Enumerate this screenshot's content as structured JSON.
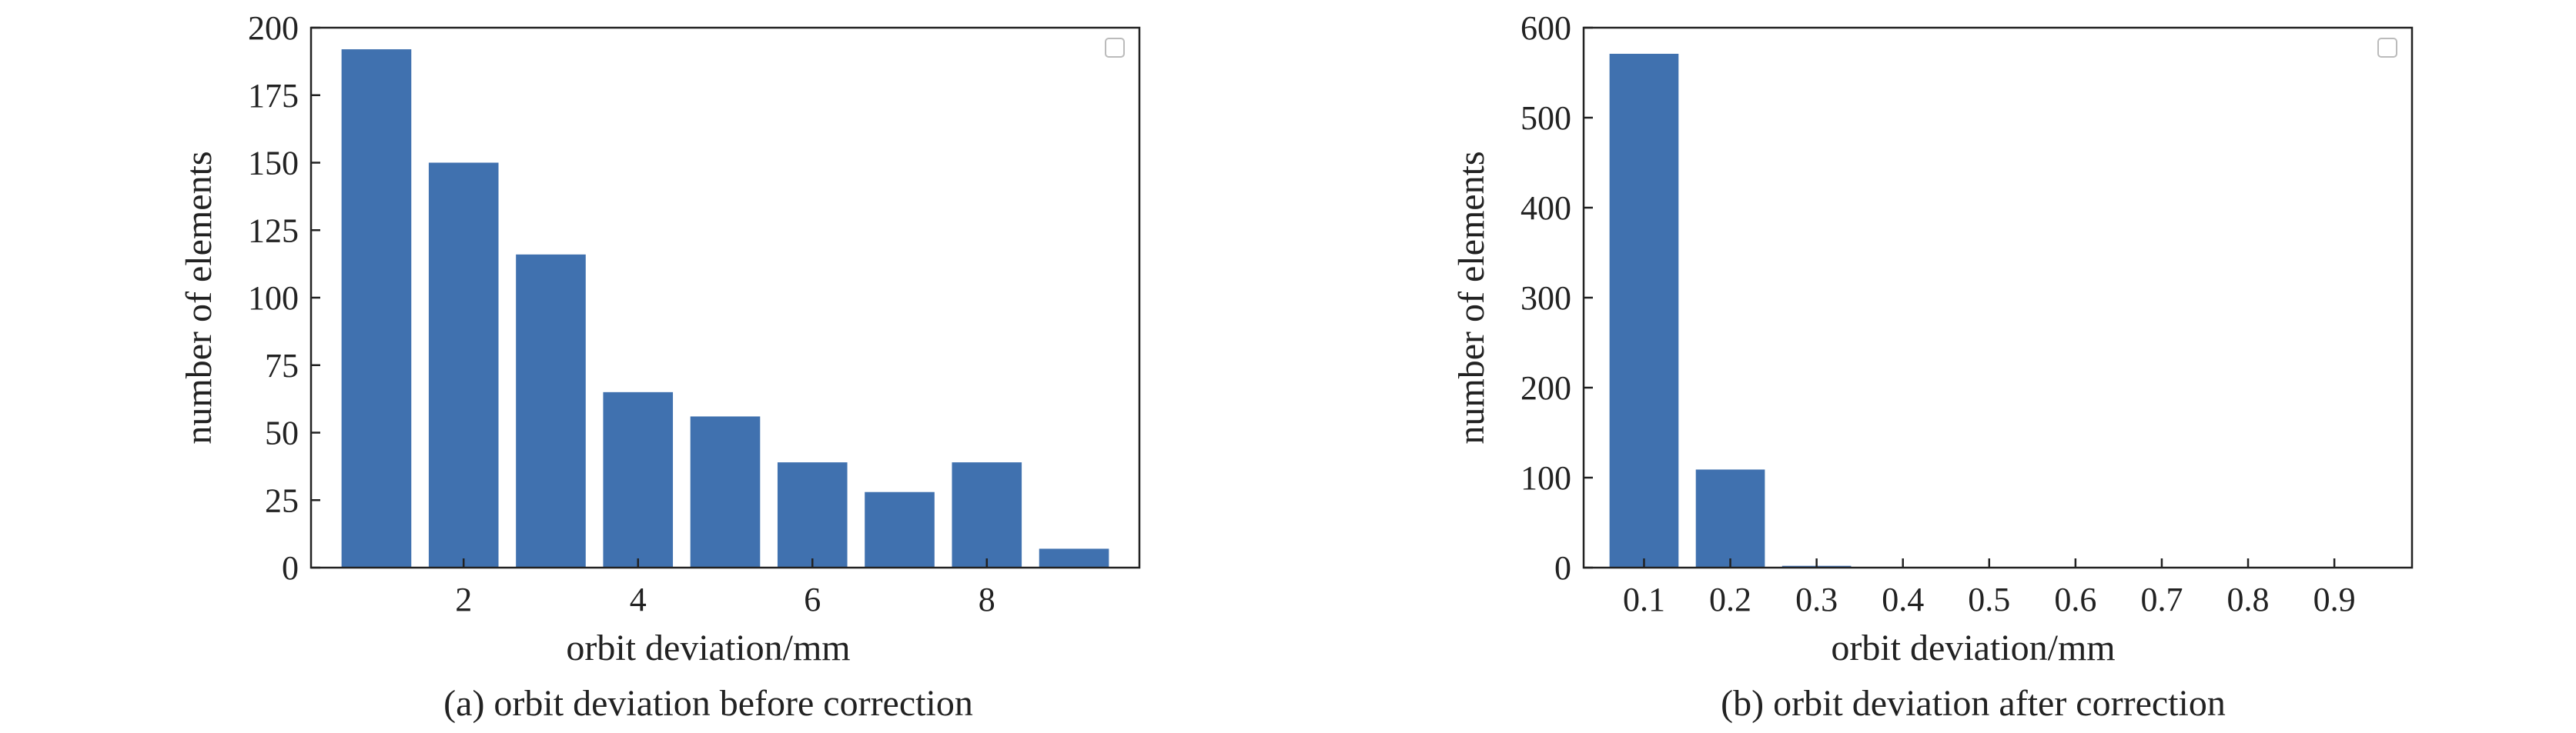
{
  "figure": {
    "panels": [
      {
        "caption": "(a) orbit deviation before correction"
      },
      {
        "caption": "(b) orbit deviation after correction"
      }
    ]
  },
  "chart_data": [
    {
      "type": "bar",
      "xlabel": "orbit deviation/mm",
      "ylabel": "number of elements",
      "x": [
        1,
        2,
        3,
        4,
        5,
        6,
        7,
        8,
        9
      ],
      "values": [
        192,
        150,
        116,
        65,
        56,
        39,
        28,
        39,
        7
      ],
      "bar_width": 0.8,
      "xlim": [
        0.25,
        9.75
      ],
      "ylim": [
        0,
        200
      ],
      "xticks": [
        2,
        4,
        6,
        8
      ],
      "xtick_labels": [
        "2",
        "4",
        "6",
        "8"
      ],
      "yticks": [
        0,
        25,
        50,
        75,
        100,
        125,
        150,
        175,
        200
      ],
      "ytick_labels": [
        "0",
        "25",
        "50",
        "75",
        "100",
        "125",
        "150",
        "175",
        "200"
      ],
      "bar_color": "#4071af",
      "grid": false,
      "legend": "top-right (empty)"
    },
    {
      "type": "bar",
      "xlabel": "orbit deviation/mm",
      "ylabel": "number of elements",
      "x": [
        0.1,
        0.2,
        0.3,
        0.4,
        0.5,
        0.6,
        0.7,
        0.8,
        0.9
      ],
      "values": [
        571,
        109,
        2,
        0,
        0,
        0,
        0,
        0,
        0
      ],
      "bar_width": 0.08,
      "xlim": [
        0.03,
        0.99
      ],
      "ylim": [
        0,
        600
      ],
      "xticks": [
        0.1,
        0.2,
        0.3,
        0.4,
        0.5,
        0.6,
        0.7,
        0.8,
        0.9
      ],
      "xtick_labels": [
        "0.1",
        "0.2",
        "0.3",
        "0.4",
        "0.5",
        "0.6",
        "0.7",
        "0.8",
        "0.9"
      ],
      "yticks": [
        0,
        100,
        200,
        300,
        400,
        500,
        600
      ],
      "ytick_labels": [
        "0",
        "100",
        "200",
        "300",
        "400",
        "500",
        "600"
      ],
      "bar_color": "#4071af",
      "grid": false,
      "legend": "top-right (empty)"
    }
  ]
}
